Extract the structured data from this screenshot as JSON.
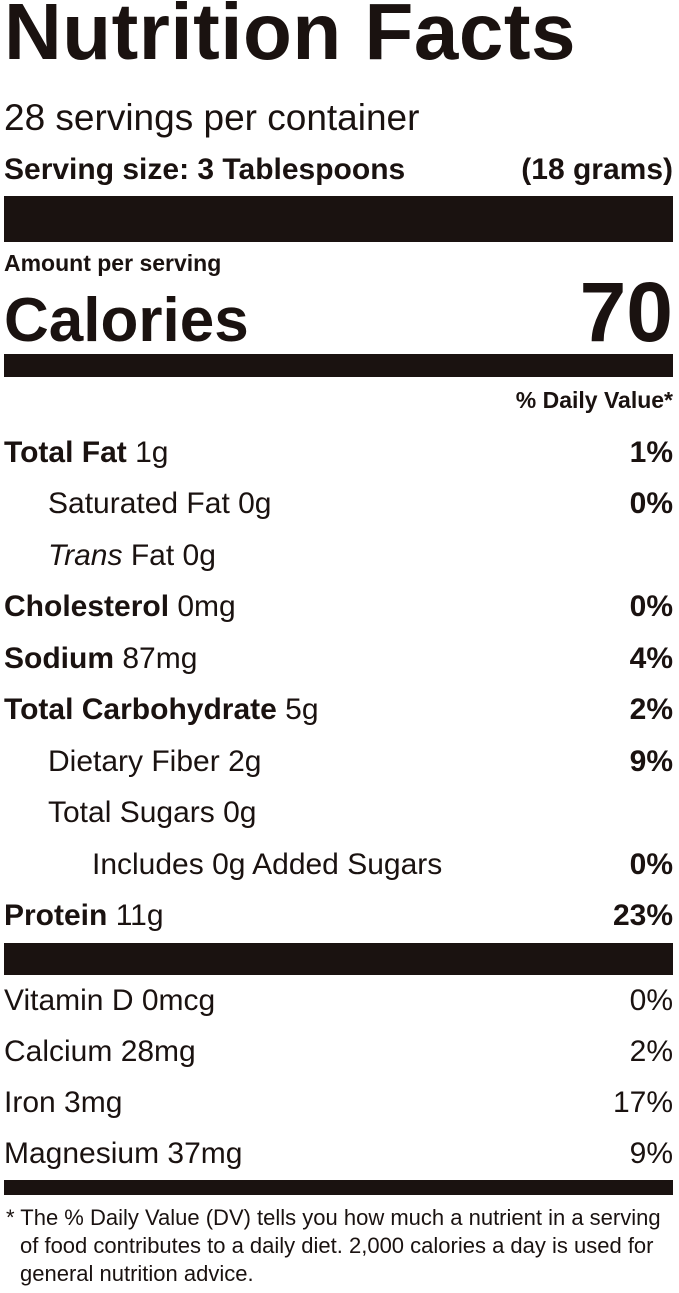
{
  "title": "Nutrition Facts",
  "servings_per_container": "28 servings per container",
  "serving_size_label": "Serving size: 3 Tablespoons",
  "serving_size_grams": "(18 grams)",
  "amount_per_serving": "Amount per serving",
  "calories_label": "Calories",
  "calories_value": "70",
  "daily_value_header": "% Daily Value*",
  "nutrients": [
    {
      "name": "Total Fat",
      "amount": "1g",
      "dv": "1%"
    },
    {
      "name": "Saturated Fat",
      "amount": "0g",
      "dv": "0%"
    },
    {
      "name_italic": "Trans",
      "name": "Fat",
      "amount": "0g",
      "dv": ""
    },
    {
      "name": "Cholesterol",
      "amount": "0mg",
      "dv": "0%"
    },
    {
      "name": "Sodium",
      "amount": "87mg",
      "dv": "4%"
    },
    {
      "name": "Total Carbohydrate",
      "amount": "5g",
      "dv": "2%"
    },
    {
      "name": "Dietary Fiber",
      "amount": "2g",
      "dv": "9%"
    },
    {
      "name": "Total Sugars",
      "amount": "0g",
      "dv": ""
    },
    {
      "name": "Includes 0g Added Sugars",
      "amount": "",
      "dv": "0%"
    },
    {
      "name": "Protein",
      "amount": "11g",
      "dv": "23%"
    }
  ],
  "vitamins": [
    {
      "name": "Vitamin D 0mcg",
      "dv": "0%"
    },
    {
      "name": "Calcium 28mg",
      "dv": "2%"
    },
    {
      "name": "Iron 3mg",
      "dv": "17%"
    },
    {
      "name": "Magnesium 37mg",
      "dv": "9%"
    }
  ],
  "footnote": "* The % Daily Value (DV) tells you how much a nutrient in a serving of food contributes to a daily diet. 2,000 calories a day is used for general nutrition advice.",
  "colors": {
    "ink": "#1a1210",
    "background": "#ffffff"
  }
}
